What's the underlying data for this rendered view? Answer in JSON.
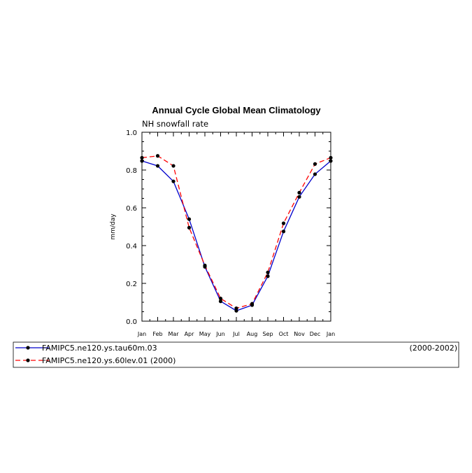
{
  "chart_data": {
    "type": "line",
    "title": "Annual Cycle Global Mean Climatology",
    "subtitle": "NH snowfall rate",
    "xlabel": "",
    "ylabel": "mm/day",
    "ylim": [
      0,
      1.0
    ],
    "yticks": [
      "0.0",
      "0.2",
      "0.4",
      "0.6",
      "0.8",
      "1.0"
    ],
    "categories": [
      "Jan",
      "Feb",
      "Mar",
      "Apr",
      "May",
      "Jun",
      "Jul",
      "Aug",
      "Sep",
      "Oct",
      "Nov",
      "Dec",
      "Jan"
    ],
    "grid": false,
    "legend_position": "bottom",
    "series": [
      {
        "name": "FAMIPC5.ne120.ys.tau60m.03",
        "period": "(2000-2002)",
        "color": "#0000cc",
        "dash": "solid",
        "values": [
          0.848,
          0.822,
          0.74,
          0.54,
          0.288,
          0.105,
          0.055,
          0.085,
          0.238,
          0.475,
          0.658,
          0.778,
          0.848
        ]
      },
      {
        "name": "FAMIPC5.ne120.ys.60lev.01 (2000)",
        "period": "",
        "color": "#ff0000",
        "dash": "dashed",
        "values": [
          0.865,
          0.875,
          0.822,
          0.495,
          0.295,
          0.12,
          0.068,
          0.092,
          0.258,
          0.518,
          0.68,
          0.832,
          0.865
        ]
      }
    ]
  }
}
